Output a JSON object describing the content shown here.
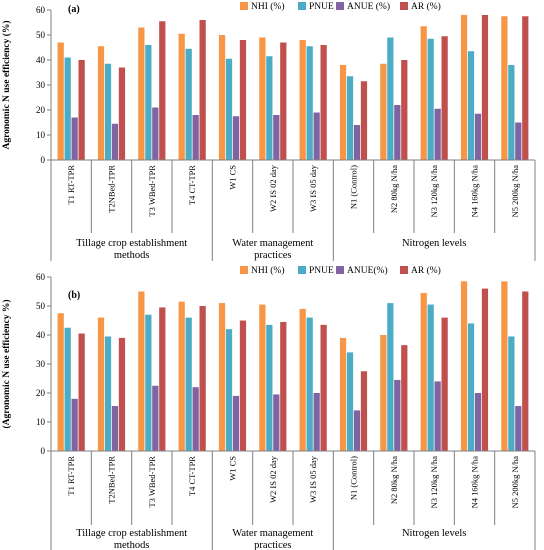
{
  "colors": {
    "NHI": "#F79646",
    "PNUE": "#4BACC6",
    "ANUE": "#8064A2",
    "AR": "#C0504D",
    "axis": "#808080"
  },
  "chart_data": [
    {
      "type": "bar",
      "panel_label": "(a)",
      "ylabel": "Agronomic N use efficiency (%)",
      "ylim": [
        0,
        60
      ],
      "yticks": [
        0,
        10,
        20,
        30,
        40,
        50,
        60
      ],
      "legend_position": "top",
      "legend": [
        "NHI (%)",
        "PNUE",
        "ANUE (%)",
        "AR (%)"
      ],
      "categories": [
        "T1 RT-TPR",
        "T2NBed-TPR",
        "T3 WBed-TPR",
        "T4 CT-TPR",
        "W1 CS",
        "W2 IS 02 day",
        "W3 IS 05 day",
        "N1 (Control)",
        "N2 80kg N/ha",
        "N3 120kg N/ha",
        "N4 160kg N/ha",
        "N5 200kg N/ha"
      ],
      "groups": [
        {
          "label_lines": [
            "Tillage crop establishment",
            "methods"
          ],
          "count": 4
        },
        {
          "label_lines": [
            "Water management",
            "practices"
          ],
          "count": 3
        },
        {
          "label_lines": [
            "Nitrogen levels"
          ],
          "count": 5
        }
      ],
      "series": [
        {
          "name": "NHI (%)",
          "color_key": "NHI",
          "values": [
            47,
            45.5,
            53,
            50.5,
            50,
            49,
            48,
            38,
            38.5,
            53.5,
            58,
            57.5
          ]
        },
        {
          "name": "PNUE",
          "color_key": "PNUE",
          "values": [
            41,
            38.5,
            46,
            44.5,
            40.5,
            41.5,
            45.5,
            33.5,
            49,
            48.5,
            43.5,
            38
          ]
        },
        {
          "name": "ANUE (%)",
          "color_key": "ANUE",
          "values": [
            17,
            14.5,
            21,
            18,
            17.5,
            18,
            19,
            14,
            22,
            20.5,
            18.5,
            15
          ]
        },
        {
          "name": "AR (%)",
          "color_key": "AR",
          "values": [
            40,
            37,
            55.5,
            56,
            48,
            47,
            46,
            31.5,
            40,
            49.5,
            58,
            57.5
          ]
        }
      ]
    },
    {
      "type": "bar",
      "panel_label": "(b)",
      "ylabel": "(Agronomic N use efficiency %)",
      "ylim": [
        0,
        60
      ],
      "yticks": [
        0,
        10,
        20,
        30,
        40,
        50,
        60
      ],
      "legend_position": "top",
      "legend": [
        "NHI (%)",
        "PNUE",
        "ANUE(%)",
        "AR (%)"
      ],
      "categories": [
        "T1 RT-TPR",
        "T2NBed-TPR",
        "T3 WBed-TPR",
        "T4 CT-TPR",
        "W1 CS",
        "W2 IS 02 day",
        "W3 IS 05 day",
        "N1 (Control)",
        "N2 80kg N/ha",
        "N3 120kg N/ha",
        "N4 160kg N/ha",
        "N5 200kg N/ha"
      ],
      "groups": [
        {
          "label_lines": [
            "Tillage crop establishment",
            "methods"
          ],
          "count": 4
        },
        {
          "label_lines": [
            "Water management",
            "practices"
          ],
          "count": 3
        },
        {
          "label_lines": [
            "Nitrogen levels"
          ],
          "count": 5
        }
      ],
      "series": [
        {
          "name": "NHI (%)",
          "color_key": "NHI",
          "values": [
            47.5,
            46,
            55,
            51.5,
            51,
            50.5,
            49,
            39,
            40,
            54.5,
            58.5,
            58.5
          ]
        },
        {
          "name": "PNUE",
          "color_key": "PNUE",
          "values": [
            42.5,
            39.5,
            47,
            46,
            42,
            43.5,
            46,
            34,
            51,
            50.5,
            44,
            39.5
          ]
        },
        {
          "name": "ANUE(%)",
          "color_key": "ANUE",
          "values": [
            18,
            15.5,
            22.5,
            22,
            19,
            19.5,
            20,
            14,
            24.5,
            24,
            20,
            15.5
          ]
        },
        {
          "name": "AR (%)",
          "color_key": "AR",
          "values": [
            40.5,
            39,
            49.5,
            50,
            45,
            44.5,
            43.5,
            27.5,
            36.5,
            46,
            56,
            55
          ]
        }
      ]
    }
  ]
}
